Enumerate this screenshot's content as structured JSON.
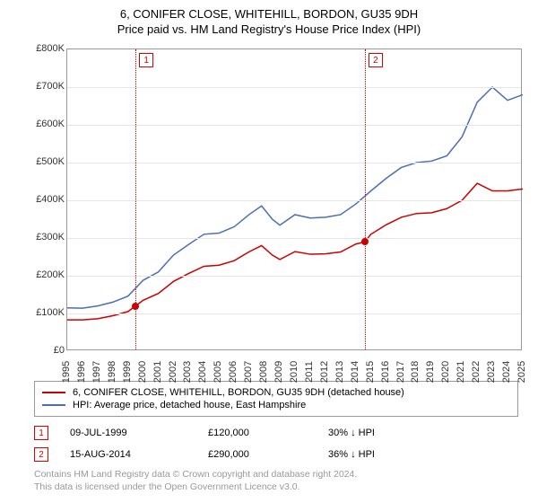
{
  "title_line1": "6, CONIFER CLOSE, WHITEHILL, BORDON, GU35 9DH",
  "title_line2": "Price paid vs. HM Land Registry's House Price Index (HPI)",
  "chart": {
    "type": "line",
    "background_color": "#ffffff",
    "grid_color": "#e6e6e6",
    "border_color": "#999999",
    "ylim": [
      0,
      800000
    ],
    "ytick_step": 100000,
    "yticks": [
      "£0",
      "£100K",
      "£200K",
      "£300K",
      "£400K",
      "£500K",
      "£600K",
      "£700K",
      "£800K"
    ],
    "xlim": [
      1995,
      2025
    ],
    "xticks": [
      1995,
      1996,
      1997,
      1998,
      1999,
      2000,
      2001,
      2002,
      2003,
      2004,
      2005,
      2006,
      2007,
      2008,
      2009,
      2010,
      2011,
      2012,
      2013,
      2014,
      2015,
      2016,
      2017,
      2018,
      2019,
      2020,
      2021,
      2022,
      2023,
      2024,
      2025
    ],
    "series": [
      {
        "name": "6, CONIFER CLOSE, WHITEHILL, BORDON, GU35 9DH (detached house)",
        "color": "#cc0000",
        "line_width": 1.5,
        "data": [
          [
            1995,
            83000
          ],
          [
            1996,
            83000
          ],
          [
            1997,
            86000
          ],
          [
            1998,
            94000
          ],
          [
            1999,
            105000
          ],
          [
            1999.5,
            120000
          ],
          [
            2000,
            135000
          ],
          [
            2001,
            153000
          ],
          [
            2002,
            185000
          ],
          [
            2003,
            206000
          ],
          [
            2004,
            225000
          ],
          [
            2005,
            228000
          ],
          [
            2006,
            240000
          ],
          [
            2007,
            264000
          ],
          [
            2007.8,
            280000
          ],
          [
            2008.5,
            255000
          ],
          [
            2009,
            243000
          ],
          [
            2010,
            264000
          ],
          [
            2011,
            257000
          ],
          [
            2012,
            258000
          ],
          [
            2013,
            263000
          ],
          [
            2014,
            284000
          ],
          [
            2014.6,
            290000
          ],
          [
            2015,
            310000
          ],
          [
            2016,
            335000
          ],
          [
            2017,
            355000
          ],
          [
            2018,
            365000
          ],
          [
            2019,
            367000
          ],
          [
            2020,
            378000
          ],
          [
            2021,
            400000
          ],
          [
            2022,
            445000
          ],
          [
            2023,
            425000
          ],
          [
            2024,
            425000
          ],
          [
            2025,
            430000
          ]
        ]
      },
      {
        "name": "HPI: Average price, detached house, East Hampshire",
        "color": "#4a6fb3",
        "line_width": 1.5,
        "data": [
          [
            1995,
            115000
          ],
          [
            1996,
            114000
          ],
          [
            1997,
            120000
          ],
          [
            1998,
            130000
          ],
          [
            1999,
            146000
          ],
          [
            2000,
            188000
          ],
          [
            2001,
            210000
          ],
          [
            2002,
            255000
          ],
          [
            2003,
            283000
          ],
          [
            2004,
            310000
          ],
          [
            2005,
            313000
          ],
          [
            2006,
            330000
          ],
          [
            2007,
            363000
          ],
          [
            2007.8,
            385000
          ],
          [
            2008.5,
            350000
          ],
          [
            2009,
            334000
          ],
          [
            2010,
            362000
          ],
          [
            2011,
            353000
          ],
          [
            2012,
            355000
          ],
          [
            2013,
            362000
          ],
          [
            2014,
            390000
          ],
          [
            2015,
            425000
          ],
          [
            2016,
            458000
          ],
          [
            2017,
            487000
          ],
          [
            2018,
            500000
          ],
          [
            2019,
            504000
          ],
          [
            2020,
            518000
          ],
          [
            2021,
            568000
          ],
          [
            2022,
            660000
          ],
          [
            2023,
            700000
          ],
          [
            2024,
            665000
          ],
          [
            2025,
            680000
          ]
        ]
      }
    ],
    "sale_markers": [
      {
        "label": "1",
        "x": 1999.5,
        "y": 120000,
        "color": "#cc0000"
      },
      {
        "label": "2",
        "x": 2014.6,
        "y": 290000,
        "color": "#cc0000"
      }
    ],
    "vline_color": "#cc0000"
  },
  "legend": {
    "border_color": "#999999",
    "items": [
      {
        "color": "#cc0000",
        "label": "6, CONIFER CLOSE, WHITEHILL, BORDON, GU35 9DH (detached house)"
      },
      {
        "color": "#4a6fb3",
        "label": "HPI: Average price, detached house, East Hampshire"
      }
    ]
  },
  "sales": [
    {
      "marker": "1",
      "date": "09-JUL-1999",
      "price": "£120,000",
      "delta": "30% ↓ HPI"
    },
    {
      "marker": "2",
      "date": "15-AUG-2014",
      "price": "£290,000",
      "delta": "36% ↓ HPI"
    }
  ],
  "footer_line1": "Contains HM Land Registry data © Crown copyright and database right 2024.",
  "footer_line2": "This data is licensed under the Open Government Licence v3.0."
}
